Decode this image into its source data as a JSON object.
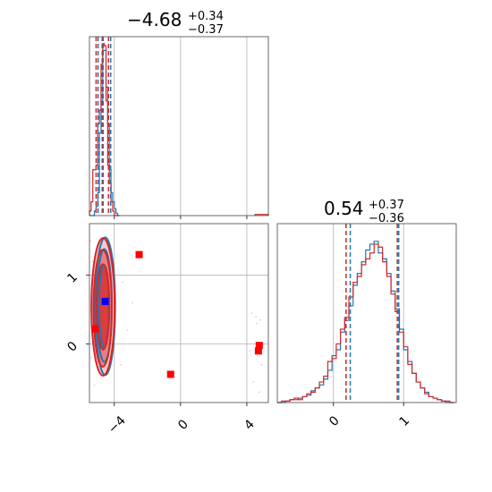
{
  "colors": {
    "red": "#d62728",
    "blue": "#1f77b4",
    "pink": "#f2b5c3",
    "marker_red": "#ff0000",
    "marker_blue": "#0000ff"
  },
  "chart_data": {
    "type": "corner",
    "params": [
      {
        "median": "−4.68",
        "upper": "+0.34",
        "lower": "−0.37",
        "xlim": [
          -5.5,
          5.3
        ],
        "quantiles_red": [
          -5.1,
          -4.73,
          -4.35
        ],
        "quantiles_blue": [
          -4.98,
          -4.67,
          -4.22
        ],
        "hist_bins": [
          -5.5,
          -5.4,
          -5.3,
          -5.2,
          -5.1,
          -5.0,
          -4.9,
          -4.8,
          -4.7,
          -4.6,
          -4.5,
          -4.4,
          -4.3,
          -4.2,
          -4.1,
          -4.0,
          -3.9,
          -3.8,
          -3.7
        ],
        "hist_red": [
          0.02,
          0.06,
          0.2,
          0.2,
          0.22,
          0.4,
          0.46,
          0.66,
          0.75,
          0.74,
          0.5,
          0.22,
          0.14,
          0.06,
          0.02,
          0.0,
          0.0,
          0.0
        ],
        "hist_blue": [
          0.0,
          0.0,
          0.0,
          0.02,
          0.04,
          0.1,
          0.36,
          0.5,
          0.72,
          0.72,
          0.56,
          0.4,
          0.2,
          0.1,
          0.06,
          0.03,
          0.01,
          0.0
        ],
        "outlier_bins": [
          4.5,
          5.3
        ],
        "outlier_red": [
          0.005
        ],
        "xticks": [
          -4,
          0,
          4
        ],
        "xtick_labels": [
          "−4",
          "0",
          "4"
        ]
      },
      {
        "median": "0.54",
        "upper": "+0.37",
        "lower": "−0.36",
        "xlim": [
          -0.8,
          1.75
        ],
        "quantiles_red": [
          0.18,
          0.91
        ],
        "quantiles_blue": [
          0.24,
          0.93
        ],
        "hist_bins": [
          -0.8,
          -0.74,
          -0.68,
          -0.62,
          -0.56,
          -0.5,
          -0.44,
          -0.38,
          -0.32,
          -0.26,
          -0.2,
          -0.14,
          -0.08,
          -0.02,
          0.04,
          0.1,
          0.16,
          0.22,
          0.28,
          0.34,
          0.4,
          0.46,
          0.52,
          0.58,
          0.64,
          0.7,
          0.76,
          0.82,
          0.88,
          0.94,
          1.0,
          1.06,
          1.12,
          1.18,
          1.24,
          1.3,
          1.36,
          1.42,
          1.48,
          1.54,
          1.6,
          1.66,
          1.72
        ],
        "hist_red": [
          0.0,
          0.01,
          0.01,
          0.02,
          0.03,
          0.02,
          0.04,
          0.06,
          0.07,
          0.1,
          0.14,
          0.18,
          0.28,
          0.3,
          0.4,
          0.5,
          0.58,
          0.72,
          0.82,
          0.86,
          0.94,
          0.98,
          1.02,
          1.08,
          1.06,
          0.96,
          0.86,
          0.74,
          0.62,
          0.48,
          0.38,
          0.26,
          0.2,
          0.14,
          0.1,
          0.06,
          0.04,
          0.03,
          0.02,
          0.01,
          0.01,
          0.0
        ],
        "hist_blue": [
          0.0,
          0.0,
          0.01,
          0.02,
          0.02,
          0.03,
          0.04,
          0.05,
          0.08,
          0.1,
          0.12,
          0.16,
          0.22,
          0.32,
          0.36,
          0.48,
          0.56,
          0.66,
          0.8,
          0.88,
          0.96,
          1.04,
          1.08,
          1.1,
          1.02,
          0.98,
          0.88,
          0.76,
          0.64,
          0.5,
          0.36,
          0.28,
          0.2,
          0.14,
          0.1,
          0.07,
          0.04,
          0.03,
          0.02,
          0.01,
          0.0,
          0.0
        ],
        "xticks": [
          0,
          1
        ],
        "xtick_labels": [
          "0",
          "1"
        ]
      }
    ],
    "joint": {
      "xlim": [
        -5.5,
        5.3
      ],
      "ylim": [
        -0.85,
        1.75
      ],
      "yticks": [
        0,
        1
      ],
      "ytick_labels": [
        "0",
        "1"
      ],
      "contours_red": [
        {
          "cx": -4.68,
          "cy": 0.54,
          "rx": 0.7,
          "ry": 1.0
        },
        {
          "cx": -4.7,
          "cy": 0.52,
          "rx": 0.55,
          "ry": 0.85
        },
        {
          "cx": -4.68,
          "cy": 0.54,
          "rx": 0.38,
          "ry": 0.62
        }
      ],
      "contours_blue": [
        {
          "cx": -4.55,
          "cy": 0.55,
          "rx": 0.6,
          "ry": 1.0
        },
        {
          "cx": -4.6,
          "cy": 0.56,
          "rx": 0.45,
          "ry": 0.82
        },
        {
          "cx": -4.62,
          "cy": 0.55,
          "rx": 0.3,
          "ry": 0.6
        }
      ],
      "markers_red": [
        {
          "x": -2.5,
          "y": 1.3
        },
        {
          "x": -0.6,
          "y": -0.44
        },
        {
          "x": 4.75,
          "y": -0.02
        },
        {
          "x": 4.7,
          "y": -0.1
        },
        {
          "x": -5.15,
          "y": 0.22
        }
      ],
      "markers_blue": [
        {
          "x": -4.55,
          "y": 0.62
        }
      ],
      "scatter_faint": [
        {
          "x": 4.3,
          "y": 0.45
        },
        {
          "x": 4.55,
          "y": 0.4
        },
        {
          "x": 4.8,
          "y": 0.35
        },
        {
          "x": 4.2,
          "y": -0.1
        },
        {
          "x": 4.6,
          "y": 0.3
        },
        {
          "x": 4.9,
          "y": -0.3
        },
        {
          "x": 4.4,
          "y": -0.55
        },
        {
          "x": 4.75,
          "y": -0.7
        },
        {
          "x": -5.4,
          "y": -0.2
        },
        {
          "x": -5.3,
          "y": 1.2
        },
        {
          "x": -3.5,
          "y": 0.9
        },
        {
          "x": -3.2,
          "y": 0.2
        },
        {
          "x": -5.45,
          "y": 1.5
        },
        {
          "x": -3.6,
          "y": -0.3
        },
        {
          "x": -2.9,
          "y": 0.6
        },
        {
          "x": -5.2,
          "y": -0.6
        }
      ]
    }
  }
}
